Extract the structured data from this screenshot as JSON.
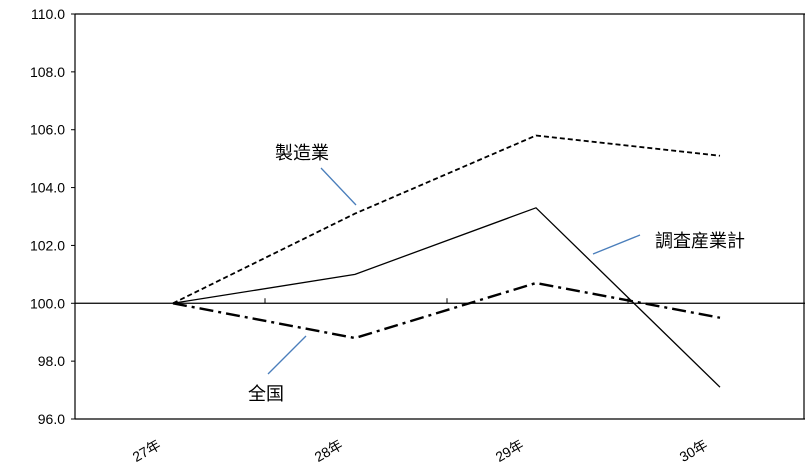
{
  "chart_data": {
    "type": "line",
    "title": "",
    "xlabel": "",
    "ylabel": "",
    "categories": [
      "27年",
      "28年",
      "29年",
      "30年"
    ],
    "y_ticks": [
      "110.0",
      "108.0",
      "106.0",
      "104.0",
      "102.0",
      "100.0",
      "98.0",
      "96.0"
    ],
    "ylim": [
      96,
      110
    ],
    "grid": false,
    "series": [
      {
        "name": "製造業",
        "values": [
          100.0,
          103.1,
          105.8,
          105.1
        ],
        "style": "dashed",
        "color": "#000000"
      },
      {
        "name": "調査産業計",
        "values": [
          100.0,
          101.0,
          103.3,
          97.1
        ],
        "style": "solid",
        "color": "#000000"
      },
      {
        "name": "全国",
        "values": [
          100.0,
          98.8,
          100.7,
          99.5
        ],
        "style": "dash-dot",
        "color": "#000000"
      }
    ],
    "annotations": [
      {
        "text": "製造業",
        "series": "製造業",
        "position": "above-left"
      },
      {
        "text": "調査産業計",
        "series": "調査産業計",
        "position": "right"
      },
      {
        "text": "全国",
        "series": "全国",
        "position": "below-left"
      }
    ],
    "leader_color": "#4a7ebb"
  }
}
